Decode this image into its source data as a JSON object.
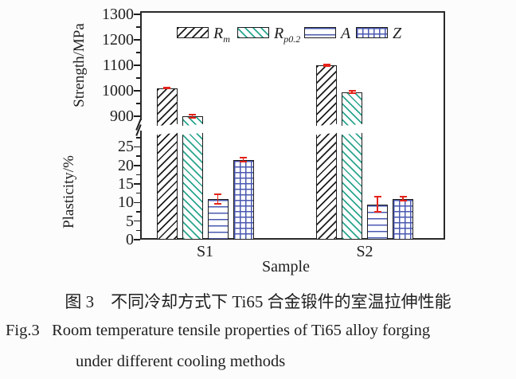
{
  "figure": {
    "caption_zh": "图 3　不同冷却方式下 Ti65 合金锻件的室温拉伸性能",
    "caption_en_line1": "Fig.3   Room temperature tensile properties of Ti65 alloy forging",
    "caption_en_line2": "under different cooling methods"
  },
  "chart_data": {
    "type": "bar",
    "categories": [
      "S1",
      "S2"
    ],
    "series": [
      {
        "name": "Rm",
        "axis": "strength",
        "values": [
          1010,
          1100
        ],
        "errors": [
          5,
          5
        ],
        "pattern": "diagonal-up-black"
      },
      {
        "name": "Rp0.2",
        "axis": "strength",
        "values": [
          900,
          995
        ],
        "errors": [
          10,
          8
        ],
        "pattern": "diagonal-down-teal"
      },
      {
        "name": "A",
        "axis": "plasticity",
        "values": [
          11,
          9.5
        ],
        "errors": [
          1.5,
          2.3
        ],
        "pattern": "horizontal-blue"
      },
      {
        "name": "Z",
        "axis": "plasticity",
        "values": [
          21.5,
          11
        ],
        "errors": [
          0.8,
          0.8
        ],
        "pattern": "grid-blue"
      }
    ],
    "y_axis_top": {
      "label": "Strength/MPa",
      "range": [
        900,
        1300
      ],
      "major_ticks": [
        900,
        1000,
        1100,
        1200,
        1300
      ],
      "minor_step": 50
    },
    "y_axis_bottom": {
      "label": "Plasticity/%",
      "range": [
        0,
        25
      ],
      "major_ticks": [
        0,
        5,
        10,
        15,
        20,
        25
      ],
      "minor_step": 2.5
    },
    "xlabel": "Sample",
    "axis_break": true,
    "grid": false,
    "legend_position": "top-inside",
    "legend": [
      {
        "main": "R",
        "sub": "m"
      },
      {
        "main": "R",
        "sub": "p0.2"
      },
      {
        "main": "A",
        "sub": ""
      },
      {
        "main": "Z",
        "sub": ""
      }
    ]
  },
  "colors": {
    "rm_hatch": "#1c1c1c",
    "rp02_hatch": "#2aa58f",
    "a_z_lines": "#4a58b0",
    "error_bar": "#e3231a",
    "frame": "#2a2a2a",
    "background": "#fcfcfc"
  }
}
